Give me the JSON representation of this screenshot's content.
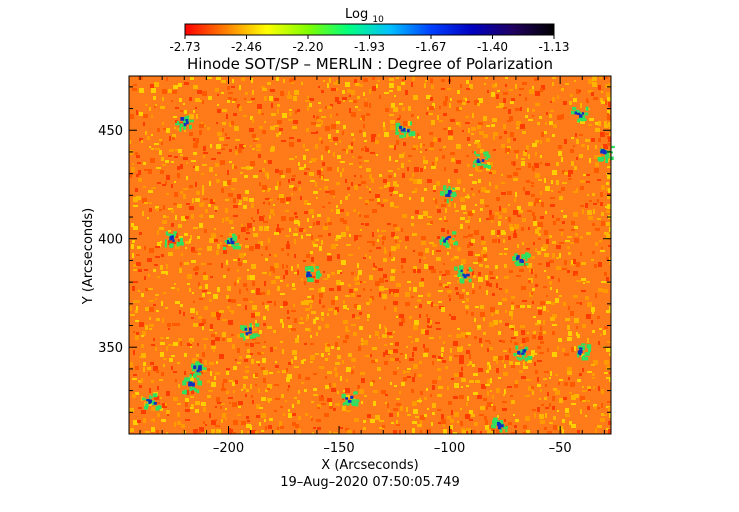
{
  "colorbar": {
    "label_main": "Log",
    "label_sub": "10",
    "ticks": [
      "-2.73",
      "-2.46",
      "-2.20",
      "-1.93",
      "-1.67",
      "-1.40",
      "-1.13"
    ],
    "gradient": [
      "#ff0000",
      "#ff8000",
      "#ffff00",
      "#80ff00",
      "#00ff80",
      "#00c0ff",
      "#0040ff",
      "#0000c0",
      "#200060",
      "#000000"
    ]
  },
  "title": "Hinode SOT/SP – MERLIN : Degree of Polarization",
  "x_axis": {
    "label": "X (Arcseconds)",
    "range": [
      -245,
      -27
    ],
    "ticks": [
      {
        "value": -200,
        "label": "–200"
      },
      {
        "value": -150,
        "label": "–150"
      },
      {
        "value": -100,
        "label": "–100"
      },
      {
        "value": -50,
        "label": "–50"
      }
    ]
  },
  "y_axis": {
    "label": "Y (Arcseconds)",
    "range": [
      310,
      475
    ],
    "ticks": [
      {
        "value": 350,
        "label": "350"
      },
      {
        "value": 400,
        "label": "400"
      },
      {
        "value": 450,
        "label": "450"
      }
    ]
  },
  "image_colors": {
    "background": "#ff7a18",
    "speckle": [
      "#ff3c00",
      "#ff9a00",
      "#ffd000",
      "#ff5a00",
      "#ffb400"
    ],
    "patch_green": "#30e060",
    "patch_blue": "#1030c0"
  },
  "timestamp": "19–Aug–2020 07:50:05.749"
}
